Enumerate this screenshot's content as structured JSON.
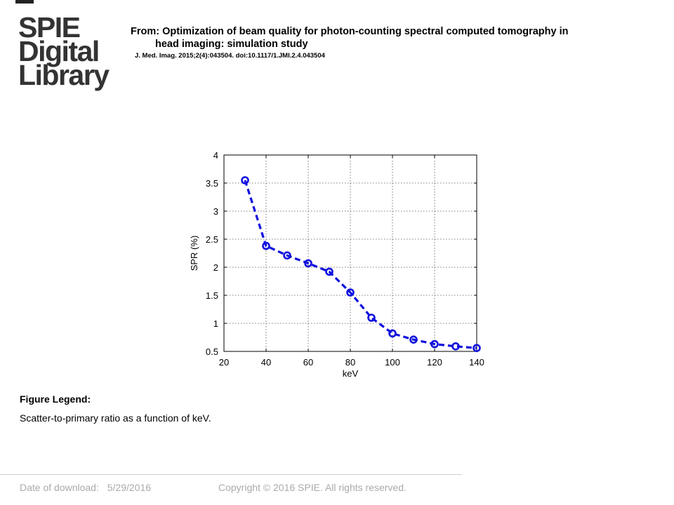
{
  "logo": {
    "line1": "SPIE",
    "line2": "Digital",
    "line3": "Library"
  },
  "header": {
    "title_line1": "From: Optimization of beam quality for photon-counting spectral computed tomography in",
    "title_line2": "head imaging: simulation study",
    "citation": "J. Med. Imag. 2015;2(4):043504. doi:10.1117/1.JMI.2.4.043504"
  },
  "chart_data": {
    "type": "line",
    "xlabel": "keV",
    "ylabel": "SPR (%)",
    "xlim": [
      20,
      140
    ],
    "ylim": [
      0.5,
      4
    ],
    "xticks": [
      20,
      40,
      60,
      80,
      100,
      120,
      140
    ],
    "yticks": [
      0.5,
      1,
      1.5,
      2,
      2.5,
      3,
      3.5,
      4
    ],
    "ytick_labels": [
      "0.5",
      "1",
      "1.5",
      "2",
      "2.5",
      "3",
      "3.5",
      "4"
    ],
    "grid": true,
    "series": [
      {
        "color": "#1010dd",
        "line_style": "dashed",
        "marker": "circle",
        "x": [
          30,
          40,
          50,
          60,
          70,
          80,
          90,
          100,
          110,
          120,
          130,
          140
        ],
        "y": [
          3.55,
          2.38,
          2.21,
          2.07,
          1.92,
          1.55,
          1.1,
          0.82,
          0.71,
          0.63,
          0.59,
          0.56
        ]
      }
    ]
  },
  "legend": {
    "label": "Figure Legend:",
    "text": "Scatter-to-primary ratio as a function of keV."
  },
  "footer": {
    "date_label": "Date of download:",
    "date_value": "5/29/2016",
    "copyright": "Copyright © 2016 SPIE. All rights reserved."
  }
}
